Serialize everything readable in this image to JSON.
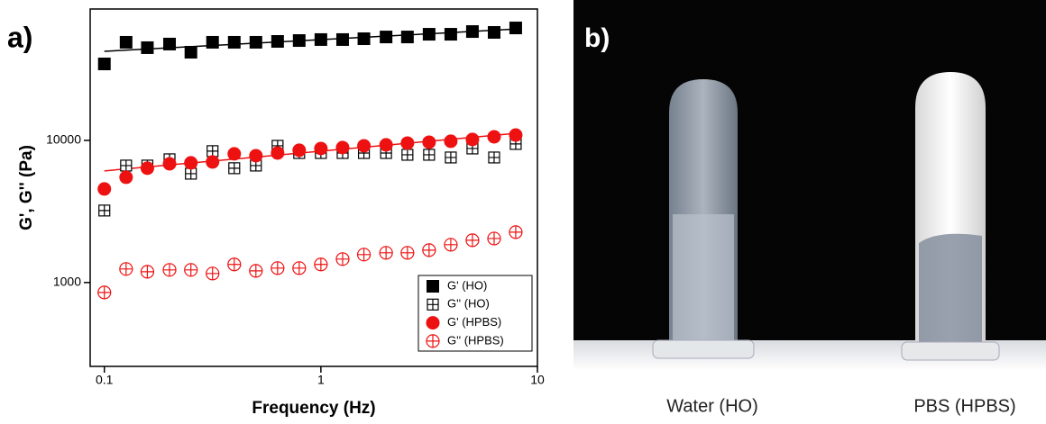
{
  "panel_labels": [
    "a)",
    "b)"
  ],
  "photo": {
    "labels": [
      "Water (HO)",
      "PBS (HPBS)"
    ]
  },
  "chart_data": {
    "type": "scatter",
    "xlabel": "Frequency (Hz)",
    "ylabel": "G', G'' (Pa)",
    "xscale": "log",
    "yscale": "log",
    "xlim": [
      0.086,
      10
    ],
    "ylim": [
      257,
      84000
    ],
    "xticks": [
      0.1,
      1,
      10
    ],
    "yticks": [
      1000,
      10000
    ],
    "legend": "lower right",
    "x": [
      0.1,
      0.126,
      0.158,
      0.2,
      0.251,
      0.316,
      0.398,
      0.501,
      0.631,
      0.794,
      1,
      1.26,
      1.58,
      2,
      2.51,
      3.16,
      3.98,
      5.01,
      6.31,
      7.94
    ],
    "series": [
      {
        "name": "G' (HO)",
        "color": "#000000",
        "marker": "square-filled",
        "values": [
          34500,
          49000,
          44900,
          47600,
          41700,
          49000,
          49000,
          49000,
          49700,
          50400,
          51200,
          51200,
          51900,
          53400,
          53400,
          55800,
          55800,
          58300,
          57500,
          61800
        ]
      },
      {
        "name": "G'' (HO)",
        "color": "#000000",
        "marker": "square-cross",
        "values": [
          3210,
          6650,
          6650,
          7360,
          5830,
          8400,
          6370,
          6650,
          9160,
          8150,
          8150,
          8150,
          8150,
          8150,
          7920,
          7920,
          7580,
          8770,
          7580,
          9440
        ]
      },
      {
        "name": "G' (HPBS)",
        "color": "#ee1111",
        "marker": "circle-filled",
        "values": [
          4550,
          5500,
          6370,
          6840,
          6950,
          7050,
          8040,
          7800,
          8150,
          8520,
          8770,
          8900,
          9160,
          9300,
          9570,
          9710,
          9860,
          10150,
          10600,
          10900
        ]
      },
      {
        "name": "G'' (HPBS)",
        "color": "#ee1111",
        "marker": "circle-cross",
        "values": [
          851,
          1245,
          1190,
          1227,
          1227,
          1157,
          1340,
          1208,
          1263,
          1263,
          1340,
          1462,
          1572,
          1618,
          1618,
          1690,
          1845,
          1983,
          2040,
          2262
        ]
      }
    ],
    "fits": [
      {
        "color": "#000000",
        "x": [
          0.1,
          7.94
        ],
        "values": [
          42300,
          60700
        ]
      },
      {
        "color": "#ee1111",
        "x": [
          0.1,
          7.94
        ],
        "values": [
          6100,
          11200
        ]
      }
    ]
  }
}
